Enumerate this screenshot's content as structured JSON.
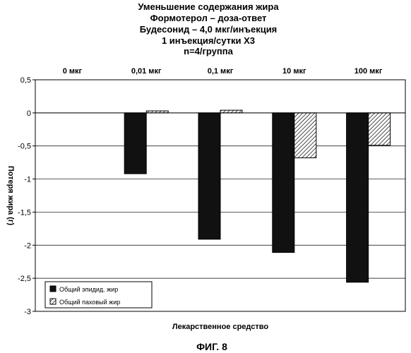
{
  "chart_data": {
    "type": "bar",
    "title_lines": [
      "Уменьшение содержания жира",
      "Формотерол – доза-ответ",
      "Будесонид – 4,0 мкг/инъекция",
      "1 инъекция/сутки X3",
      "n=4/группа"
    ],
    "categories": [
      "0 мкг",
      "0,01 мкг",
      "0,1 мкг",
      "10 мкг",
      "100 мкг"
    ],
    "series": [
      {
        "name": "Общий эпидид. жир",
        "values": [
          0,
          -0.92,
          -1.91,
          -2.11,
          -2.56
        ],
        "color": "#111111",
        "pattern": "solid"
      },
      {
        "name": "Общий паховый жир",
        "values": [
          0,
          0.03,
          0.04,
          -0.68,
          -0.49
        ],
        "color": "#ffffff",
        "pattern": "hatch"
      }
    ],
    "xlabel": "Лекарственное средство",
    "ylabel": "Потеря жира (г)",
    "ylim": [
      -3,
      0.5
    ],
    "y_ticks": [
      0.5,
      0,
      -0.5,
      -1,
      -1.5,
      -2,
      -2.5,
      -3
    ],
    "y_tick_labels": [
      "0,5",
      "0",
      "-0,5",
      "-1",
      "-1,5",
      "-2",
      "-2,5",
      "-3"
    ],
    "grid": true,
    "legend_position": "bottom-left"
  },
  "figure_label": "ФИГ. 8"
}
